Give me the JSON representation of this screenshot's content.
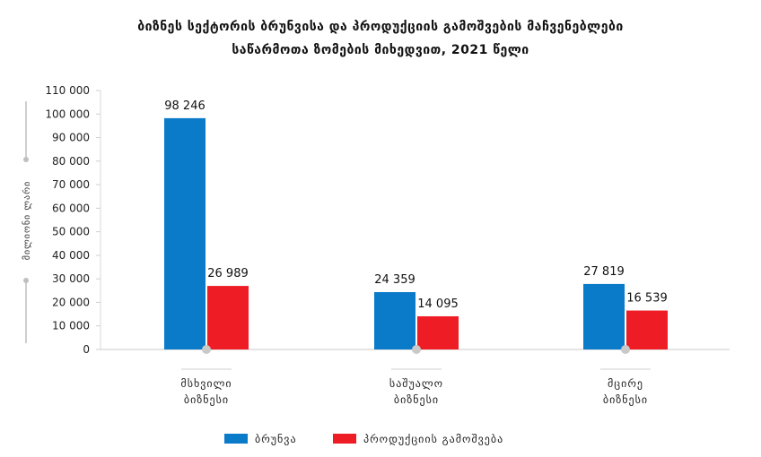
{
  "chart_data": {
    "type": "bar",
    "title_line1": "ბიზნეს სექტორის ბრუნვისა და პროდუქციის გამოშვების მაჩვენებლები",
    "title_line2": "საწარმოთა ზომების მიხედვით, 2021 წელი",
    "ylabel": "მილიონი ლარი",
    "xlabel": "",
    "ylim": [
      0,
      110000
    ],
    "ytick_step": 10000,
    "categories": [
      [
        "მსხვილი",
        "ბიზნესი"
      ],
      [
        "საშუალო",
        "ბიზნესი"
      ],
      [
        "მცირე",
        "ბიზნესი"
      ]
    ],
    "series": [
      {
        "name": "ბრუნვა",
        "color": "#0a7bc9",
        "values": [
          98246,
          24359,
          27819
        ]
      },
      {
        "name": "პროდუქციის გამოშვება",
        "color": "#ee1c25",
        "values": [
          26989,
          14095,
          16539
        ]
      }
    ],
    "grid": false,
    "legend": "bottom"
  }
}
